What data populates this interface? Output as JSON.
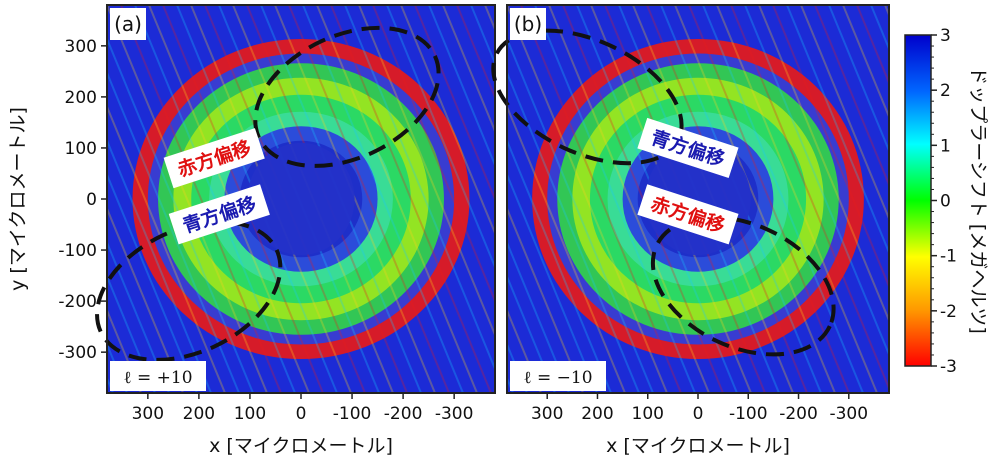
{
  "chart_data": {
    "type": "heatmap",
    "shared": {
      "xlabel": "x [マイクロメートル]",
      "ylabel": "y [マイクロメートル]",
      "xlim": [
        380,
        -380
      ],
      "ylim": [
        -380,
        380
      ],
      "xticks": [
        300,
        200,
        100,
        0,
        -100,
        -200,
        -300
      ],
      "xtick_labels": [
        "300",
        "200",
        "100",
        "0",
        "-100",
        "-200",
        "-300"
      ],
      "yticks": [
        300,
        200,
        100,
        0,
        -100,
        -200,
        -300
      ],
      "ytick_labels": [
        "300",
        "200",
        "100",
        "0",
        "-100",
        "-200",
        "-300"
      ],
      "grid": false
    },
    "colorbar": {
      "label": "ドップラーシフト [メガヘルツ]",
      "min": -3,
      "max": 3,
      "ticks": [
        3,
        2,
        1,
        0,
        -1,
        -2,
        -3
      ],
      "tick_labels": [
        "3",
        "2",
        "1",
        "0",
        "-1",
        "-2",
        "-3"
      ],
      "colors": [
        "#ff0000",
        "#ff9900",
        "#ffff00",
        "#00ff00",
        "#00ffff",
        "#0066ff",
        "#0000cc"
      ]
    },
    "panels": [
      {
        "panel_label": "(a)",
        "ell_label": "ℓ = +10",
        "annotations": [
          {
            "text": "赤方偏移",
            "color": "#e01010",
            "x": 170,
            "y": 80,
            "rotation": 18
          },
          {
            "text": "青方偏移",
            "color": "#1a1ab0",
            "x": 160,
            "y": -30,
            "rotation": 18
          }
        ],
        "regions": [
          {
            "kind": "dashed-ellipse",
            "cx": -90,
            "cy": 200,
            "rx": 190,
            "ry": 120,
            "angle": -25
          },
          {
            "kind": "dashed-ellipse",
            "cx": 220,
            "cy": -180,
            "rx": 190,
            "ry": 120,
            "angle": -25
          }
        ]
      },
      {
        "panel_label": "(b)",
        "ell_label": "ℓ = −10",
        "annotations": [
          {
            "text": "青方偏移",
            "color": "#1a1ab0",
            "x": 20,
            "y": 100,
            "rotation": -18
          },
          {
            "text": "赤方偏移",
            "color": "#e01010",
            "x": 20,
            "y": -30,
            "rotation": -18
          }
        ],
        "regions": [
          {
            "kind": "dashed-ellipse",
            "cx": 220,
            "cy": 200,
            "rx": 200,
            "ry": 110,
            "angle": 25
          },
          {
            "kind": "dashed-ellipse",
            "cx": -90,
            "cy": -170,
            "rx": 190,
            "ry": 120,
            "angle": 25
          }
        ]
      }
    ]
  }
}
